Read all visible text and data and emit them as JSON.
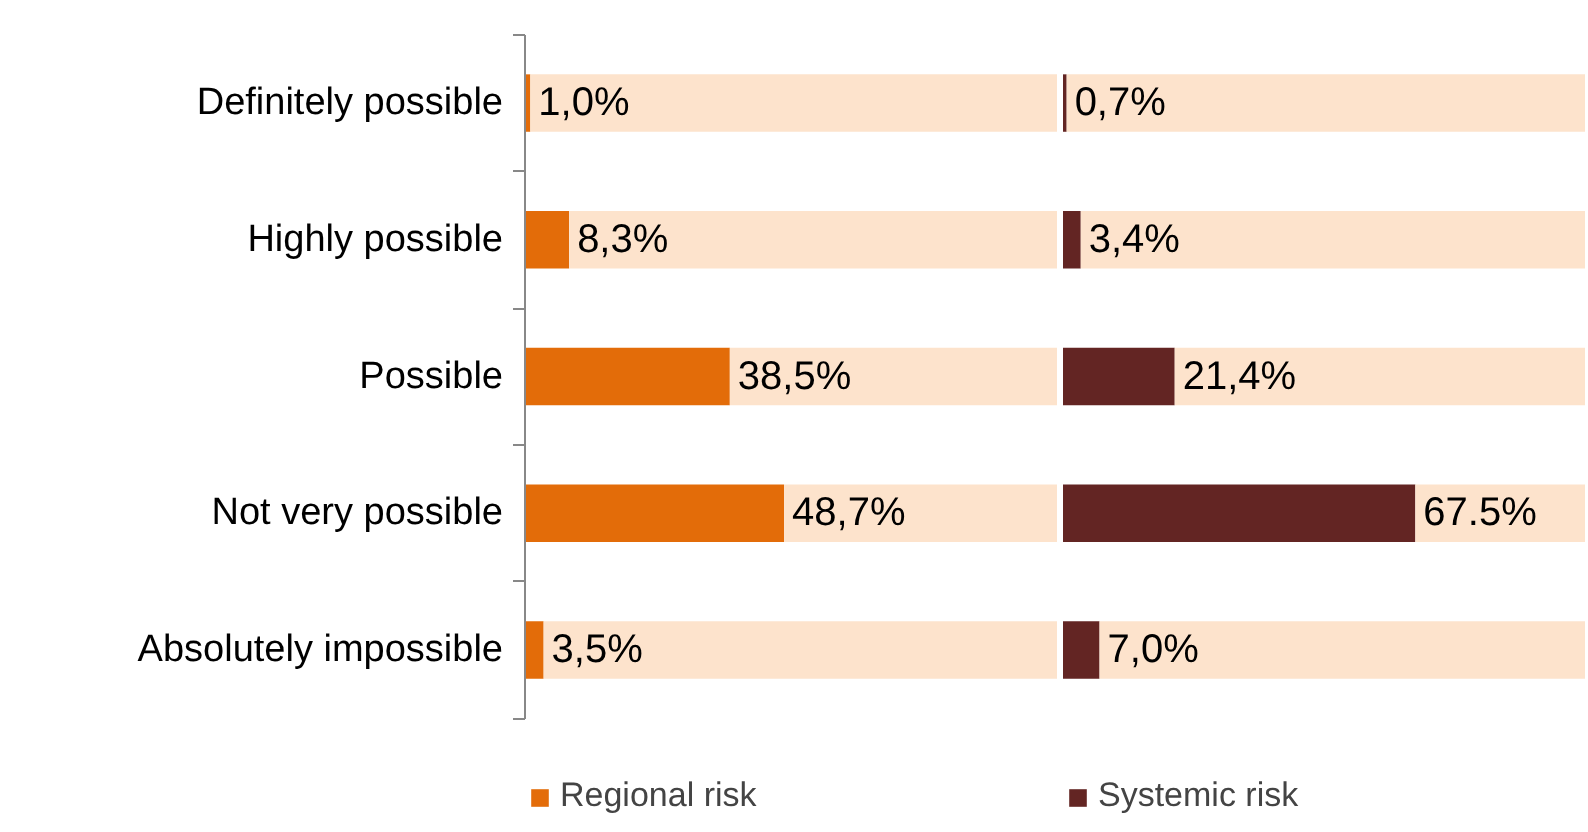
{
  "chart_data": [
    {
      "type": "bar",
      "orientation": "horizontal",
      "stacked": true,
      "legend": "bottom",
      "tick_labels": "y",
      "categories": [
        "Definitely possible",
        "Highly possible",
        "Possible",
        "Not very possible",
        "Absolutely impossible"
      ],
      "series": [
        {
          "name": "Regional risk",
          "color": "#e36c09",
          "values": [
            1.0,
            8.3,
            38.5,
            48.7,
            3.5
          ],
          "value_labels": [
            "1,0%",
            "8,3%",
            "38,5%",
            "48,7%",
            "3,5%"
          ]
        },
        {
          "color": "#fde3cc",
          "values": [
            99.0,
            91.7,
            61.5,
            51.3,
            96.5
          ]
        }
      ]
    },
    {
      "type": "bar",
      "orientation": "horizontal",
      "stacked": true,
      "legend": "bottom",
      "tick_labels": false,
      "categories": [
        null,
        null,
        null,
        null,
        null
      ],
      "series": [
        {
          "name": "Systemic risk",
          "color": "#632523",
          "values": [
            0.7,
            3.4,
            21.4,
            67.5,
            7.0
          ],
          "value_labels": [
            "0,7%",
            "3,4%",
            "21,4%",
            "67.5%",
            "7,0%"
          ]
        },
        {
          "color": "#fde3cc",
          "values": [
            99.3,
            96.6,
            78.6,
            32.5,
            93.0
          ]
        }
      ]
    }
  ]
}
